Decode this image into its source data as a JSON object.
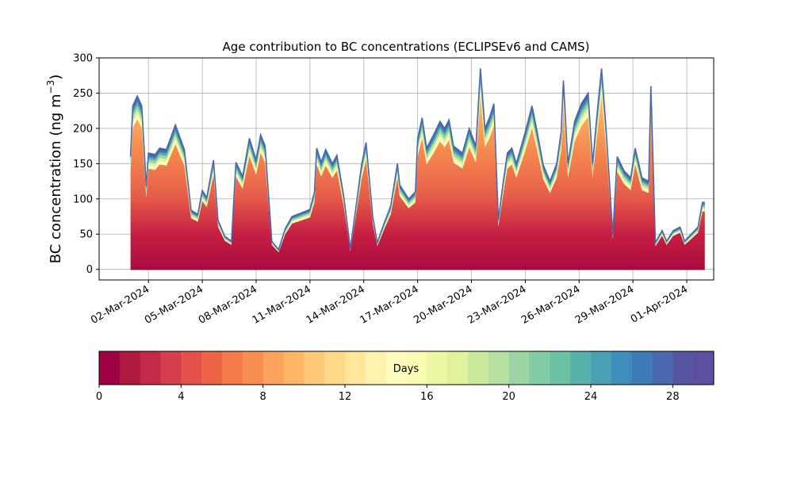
{
  "chart_data": {
    "type": "area",
    "title": "Age contribution to BC concentrations (ECLIPSEv6 and CAMS)",
    "ylabel_text": "BC concentration (ng m",
    "ylabel_sup": "−3",
    "ylabel_close": ")",
    "xlabel": "",
    "stacked": true,
    "grid": true,
    "ylim": [
      -15,
      300
    ],
    "xlim": [
      "2024-02-28T06:00",
      "2024-04-02T12:00"
    ],
    "yticks": [
      0,
      50,
      100,
      150,
      200,
      250,
      300
    ],
    "xticks": [
      {
        "date": "2024-03-02",
        "label": "02-Mar-2024"
      },
      {
        "date": "2024-03-05",
        "label": "05-Mar-2024"
      },
      {
        "date": "2024-03-08",
        "label": "08-Mar-2024"
      },
      {
        "date": "2024-03-11",
        "label": "11-Mar-2024"
      },
      {
        "date": "2024-03-14",
        "label": "14-Mar-2024"
      },
      {
        "date": "2024-03-17",
        "label": "17-Mar-2024"
      },
      {
        "date": "2024-03-20",
        "label": "20-Mar-2024"
      },
      {
        "date": "2024-03-23",
        "label": "23-Mar-2024"
      },
      {
        "date": "2024-03-26",
        "label": "26-Mar-2024"
      },
      {
        "date": "2024-03-29",
        "label": "29-Mar-2024"
      },
      {
        "date": "2024-04-01",
        "label": "01-Apr-2024"
      }
    ],
    "total": [
      [
        "2024-03-01T00:00",
        160
      ],
      [
        "2024-03-01T03:00",
        232
      ],
      [
        "2024-03-01T09:00",
        246
      ],
      [
        "2024-03-01T15:00",
        232
      ],
      [
        "2024-03-01T21:00",
        118
      ],
      [
        "2024-03-02T00:00",
        165
      ],
      [
        "2024-03-02T09:00",
        163
      ],
      [
        "2024-03-02T15:00",
        172
      ],
      [
        "2024-03-03T00:00",
        170
      ],
      [
        "2024-03-03T12:00",
        205
      ],
      [
        "2024-03-04T00:00",
        170
      ],
      [
        "2024-03-04T09:00",
        84
      ],
      [
        "2024-03-04T18:00",
        78
      ],
      [
        "2024-03-05T00:00",
        112
      ],
      [
        "2024-03-05T06:00",
        102
      ],
      [
        "2024-03-05T15:00",
        155
      ],
      [
        "2024-03-05T21:00",
        70
      ],
      [
        "2024-03-06T06:00",
        47
      ],
      [
        "2024-03-06T15:00",
        40
      ],
      [
        "2024-03-06T21:00",
        152
      ],
      [
        "2024-03-07T06:00",
        132
      ],
      [
        "2024-03-07T15:00",
        186
      ],
      [
        "2024-03-08T00:00",
        155
      ],
      [
        "2024-03-08T06:00",
        191
      ],
      [
        "2024-03-08T12:00",
        175
      ],
      [
        "2024-03-08T21:00",
        40
      ],
      [
        "2024-03-09T06:00",
        28
      ],
      [
        "2024-03-09T15:00",
        58
      ],
      [
        "2024-03-10T00:00",
        75
      ],
      [
        "2024-03-10T12:00",
        80
      ],
      [
        "2024-03-11T00:00",
        85
      ],
      [
        "2024-03-11T06:00",
        110
      ],
      [
        "2024-03-11T09:00",
        172
      ],
      [
        "2024-03-11T15:00",
        152
      ],
      [
        "2024-03-11T21:00",
        170
      ],
      [
        "2024-03-12T06:00",
        150
      ],
      [
        "2024-03-12T12:00",
        162
      ],
      [
        "2024-03-12T21:00",
        105
      ],
      [
        "2024-03-13T06:00",
        30
      ],
      [
        "2024-03-13T15:00",
        100
      ],
      [
        "2024-03-13T21:00",
        148
      ],
      [
        "2024-03-14T03:00",
        180
      ],
      [
        "2024-03-14T12:00",
        75
      ],
      [
        "2024-03-14T18:00",
        38
      ],
      [
        "2024-03-15T03:00",
        65
      ],
      [
        "2024-03-15T12:00",
        90
      ],
      [
        "2024-03-15T21:00",
        150
      ],
      [
        "2024-03-16T00:00",
        120
      ],
      [
        "2024-03-16T12:00",
        100
      ],
      [
        "2024-03-16T21:00",
        110
      ],
      [
        "2024-03-17T00:00",
        185
      ],
      [
        "2024-03-17T06:00",
        215
      ],
      [
        "2024-03-17T12:00",
        172
      ],
      [
        "2024-03-17T21:00",
        190
      ],
      [
        "2024-03-18T06:00",
        210
      ],
      [
        "2024-03-18T12:00",
        200
      ],
      [
        "2024-03-18T18:00",
        212
      ],
      [
        "2024-03-19T00:00",
        175
      ],
      [
        "2024-03-19T12:00",
        165
      ],
      [
        "2024-03-19T21:00",
        200
      ],
      [
        "2024-03-20T06:00",
        175
      ],
      [
        "2024-03-20T12:00",
        285
      ],
      [
        "2024-03-20T18:00",
        200
      ],
      [
        "2024-03-21T00:00",
        215
      ],
      [
        "2024-03-21T06:00",
        235
      ],
      [
        "2024-03-21T12:00",
        70
      ],
      [
        "2024-03-21T18:00",
        120
      ],
      [
        "2024-03-22T00:00",
        165
      ],
      [
        "2024-03-22T06:00",
        172
      ],
      [
        "2024-03-22T12:00",
        150
      ],
      [
        "2024-03-23T00:00",
        195
      ],
      [
        "2024-03-23T09:00",
        232
      ],
      [
        "2024-03-23T15:00",
        200
      ],
      [
        "2024-03-24T00:00",
        148
      ],
      [
        "2024-03-24T09:00",
        125
      ],
      [
        "2024-03-24T18:00",
        150
      ],
      [
        "2024-03-25T00:00",
        195
      ],
      [
        "2024-03-25T03:00",
        268
      ],
      [
        "2024-03-25T09:00",
        150
      ],
      [
        "2024-03-25T18:00",
        210
      ],
      [
        "2024-03-26T03:00",
        235
      ],
      [
        "2024-03-26T12:00",
        250
      ],
      [
        "2024-03-26T18:00",
        150
      ],
      [
        "2024-03-27T00:00",
        220
      ],
      [
        "2024-03-27T06:00",
        285
      ],
      [
        "2024-03-27T12:00",
        200
      ],
      [
        "2024-03-27T21:00",
        50
      ],
      [
        "2024-03-28T03:00",
        160
      ],
      [
        "2024-03-28T12:00",
        140
      ],
      [
        "2024-03-28T21:00",
        130
      ],
      [
        "2024-03-29T03:00",
        172
      ],
      [
        "2024-03-29T12:00",
        130
      ],
      [
        "2024-03-29T21:00",
        125
      ],
      [
        "2024-03-30T00:00",
        260
      ],
      [
        "2024-03-30T06:00",
        38
      ],
      [
        "2024-03-30T15:00",
        55
      ],
      [
        "2024-03-30T21:00",
        40
      ],
      [
        "2024-03-31T06:00",
        55
      ],
      [
        "2024-03-31T15:00",
        60
      ],
      [
        "2024-03-31T21:00",
        40
      ],
      [
        "2024-04-01T06:00",
        50
      ],
      [
        "2024-04-01T15:00",
        60
      ],
      [
        "2024-04-01T21:00",
        95
      ],
      [
        "2024-04-02T00:00",
        95
      ]
    ],
    "colorbar": {
      "label": "Days",
      "min": 0,
      "max": 30,
      "ticks": [
        0,
        4,
        8,
        12,
        16,
        20,
        24,
        28
      ],
      "colors": [
        "#9e0142",
        "#b0193f",
        "#c42a47",
        "#d53e4f",
        "#e2514a",
        "#ed6445",
        "#f47a4a",
        "#f88e52",
        "#fba45d",
        "#fdb668",
        "#fdc877",
        "#fed987",
        "#fee69a",
        "#fff2ad",
        "#fffbbf",
        "#f8fbb2",
        "#eef8a4",
        "#e0f29c",
        "#cbea9e",
        "#b5e0a0",
        "#9bd5a4",
        "#82cba5",
        "#6cc2a5",
        "#58b1ab",
        "#4a9fb2",
        "#3e8dba",
        "#3f7bb6",
        "#4a68ad",
        "#5756a4",
        "#5e4fa2"
      ]
    }
  }
}
